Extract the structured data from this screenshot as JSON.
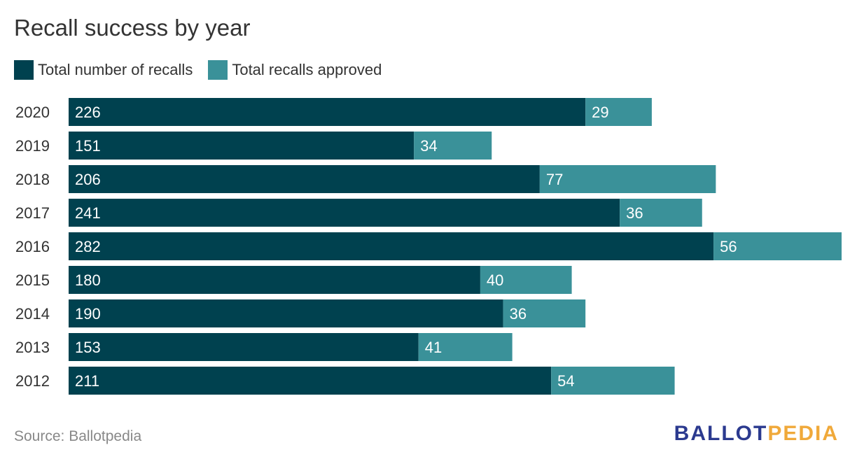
{
  "chart_data": {
    "type": "bar",
    "orientation": "horizontal",
    "stacked": true,
    "title": "Recall success by year",
    "categories": [
      "2020",
      "2019",
      "2018",
      "2017",
      "2016",
      "2015",
      "2014",
      "2013",
      "2012"
    ],
    "series": [
      {
        "name": "Total number of recalls",
        "color": "#00414f",
        "values": [
          226,
          151,
          206,
          241,
          282,
          180,
          190,
          153,
          211
        ]
      },
      {
        "name": "Total recalls approved",
        "color": "#3a9199",
        "values": [
          29,
          34,
          77,
          36,
          56,
          40,
          36,
          41,
          54
        ]
      }
    ],
    "xlim": [
      0,
      338
    ],
    "grid": false,
    "legend_position": "top-left"
  },
  "source": "Source: Ballotpedia",
  "logo": {
    "part1": "BALLOT",
    "part2": "PEDIA"
  }
}
